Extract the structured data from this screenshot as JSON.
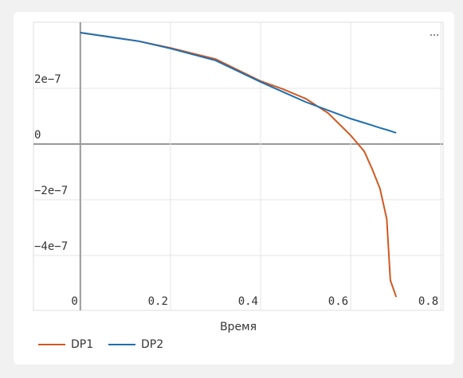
{
  "chart_data": {
    "type": "line",
    "x_label": "Время",
    "x": [
      0,
      0.13,
      0.2,
      0.3,
      0.4,
      0.45,
      0.5,
      0.55,
      0.6,
      0.63,
      0.648,
      0.665,
      0.68,
      0.688,
      0.701
    ],
    "series": [
      {
        "name": "DP1",
        "color": "#d2581f",
        "values": [
          4e-07,
          3.69e-07,
          3.45e-07,
          3.05e-07,
          2.26e-07,
          1.97e-07,
          1.63e-07,
          1.11e-07,
          3.1e-08,
          -2.6e-08,
          -9.1e-08,
          -1.6e-07,
          -2.69e-07,
          -4.89e-07,
          -5.49e-07
        ]
      },
      {
        "name": "DP2",
        "color": "#1f6fb2",
        "values": [
          4e-07,
          3.69e-07,
          3.43e-07,
          3e-07,
          2.23e-07,
          1.87e-07,
          1.51e-07,
          1.21e-07,
          9.1e-08,
          7.6e-08,
          6.7e-08,
          5.8e-08,
          5.1e-08,
          4.7e-08,
          4e-08
        ]
      }
    ],
    "xlim": [
      -0.104,
      0.805
    ],
    "ylim": [
      -5.97e-07,
      4.37e-07
    ],
    "xticks": [
      0,
      0.2,
      0.4,
      0.6,
      0.8
    ],
    "yticks": [
      {
        "value": -4e-07,
        "label": "−4e−7"
      },
      {
        "value": -2e-07,
        "label": "−2e−7"
      },
      0,
      {
        "value": 2e-07,
        "label": "2e−7"
      }
    ],
    "grid": true,
    "legend": "bottom-left"
  }
}
